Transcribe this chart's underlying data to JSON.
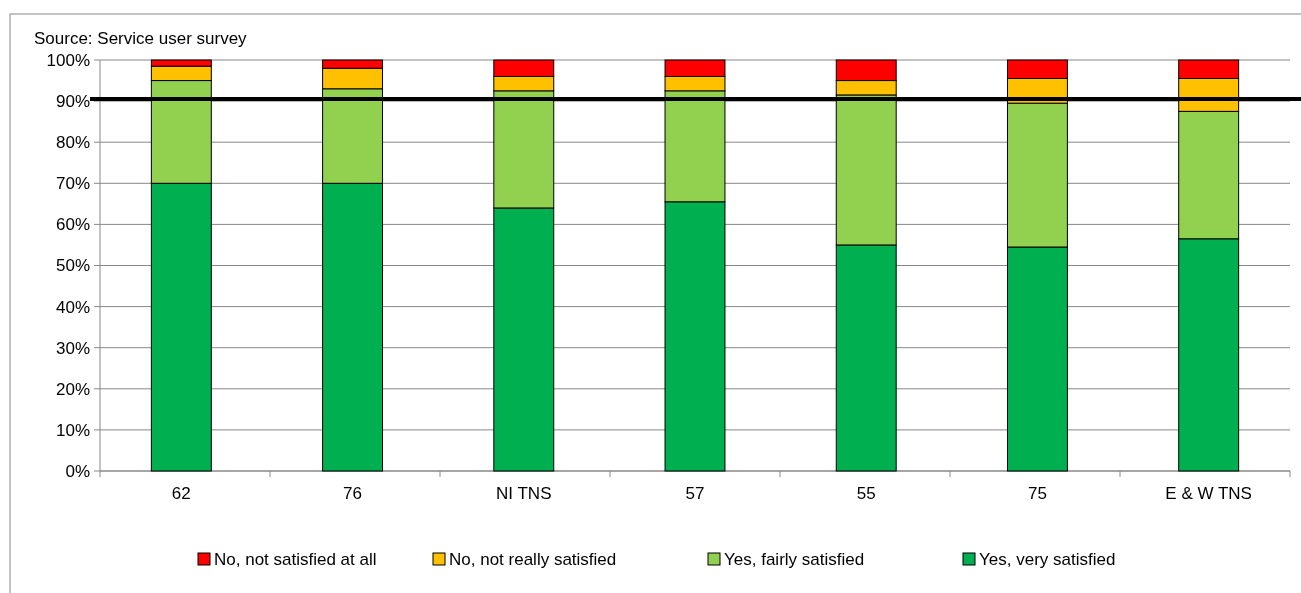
{
  "chart_data": {
    "type": "bar",
    "stacked": true,
    "annotations": [
      "Source: Service user survey"
    ],
    "categories": [
      "62",
      "76",
      "NI TNS",
      "57",
      "55",
      "75",
      "E & W TNS"
    ],
    "series": [
      {
        "name": "Yes, very satisfied",
        "color": "#00b050",
        "values": [
          70,
          70,
          64,
          65.5,
          55,
          54.5,
          56.5
        ]
      },
      {
        "name": "Yes, fairly satisfied",
        "color": "#92d050",
        "values": [
          25,
          23,
          28.5,
          27,
          36.5,
          35,
          31
        ]
      },
      {
        "name": "No, not really satisfied",
        "color": "#ffc000",
        "values": [
          3.5,
          5,
          3.5,
          3.5,
          3.5,
          6,
          8
        ]
      },
      {
        "name": "No, not satisfied at all",
        "color": "#ff0000",
        "values": [
          1.5,
          2,
          4,
          4,
          5,
          4.5,
          4.5
        ]
      }
    ],
    "ylim": [
      0,
      100
    ],
    "yticks": [
      {
        "value": 0,
        "label": "0%"
      },
      {
        "value": 10,
        "label": "10%"
      },
      {
        "value": 20,
        "label": "20%"
      },
      {
        "value": 30,
        "label": "30%"
      },
      {
        "value": 40,
        "label": "40%"
      },
      {
        "value": 50,
        "label": "50%"
      },
      {
        "value": 60,
        "label": "60%"
      },
      {
        "value": 70,
        "label": "70%"
      },
      {
        "value": 80,
        "label": "80%"
      },
      {
        "value": 90,
        "label": "90%"
      },
      {
        "value": 100,
        "label": "100%"
      }
    ],
    "grid": "y",
    "legend": "bottom",
    "ref_lines": [
      {
        "axis": "y",
        "value": 90.5,
        "color": "#000000"
      }
    ]
  }
}
